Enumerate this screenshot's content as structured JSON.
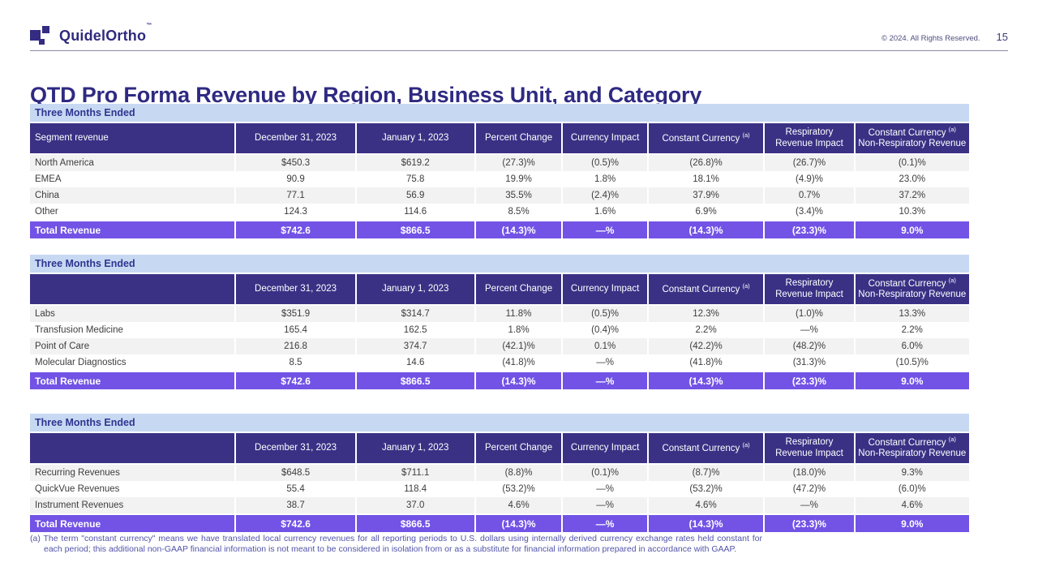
{
  "header": {
    "logo_text": "QuidelOrtho",
    "logo_tm": "™",
    "copyright": "© 2024. All Rights Reserved.",
    "page_number": "15"
  },
  "title": "QTD Pro Forma Revenue by Region, Business Unit, and Category",
  "colors": {
    "indigo": "#3A3185",
    "violet": "#7253E6",
    "lightblue": "#C7D8F2",
    "titleblue": "#2E2A82",
    "captionblue": "#2C3590",
    "bodytext": "#3D3D3D",
    "stripe": "#F2F2F2",
    "footnote": "#5254A9"
  },
  "tables": [
    {
      "caption": "Three Months Ended",
      "first_header": "Segment revenue",
      "columns": [
        {
          "l1": "December 31, 2023"
        },
        {
          "l1": "January 1, 2023"
        },
        {
          "l1": "Percent Change"
        },
        {
          "l1": "Currency Impact"
        },
        {
          "l1": "Constant Currency",
          "sup": "(a)"
        },
        {
          "l1": "Respiratory",
          "l2": "Revenue Impact"
        },
        {
          "l1": "Constant Currency",
          "sup": "(a)",
          "l2": "Non-Respiratory Revenue"
        }
      ],
      "rows": [
        {
          "label": "North America",
          "values": [
            "$450.3",
            "$619.2",
            "(27.3)%",
            "(0.5)%",
            "(26.8)%",
            "(26.7)%",
            "(0.1)%"
          ]
        },
        {
          "label": "EMEA",
          "values": [
            "90.9",
            "75.8",
            "19.9%",
            "1.8%",
            "18.1%",
            "(4.9)%",
            "23.0%"
          ]
        },
        {
          "label": "China",
          "values": [
            "77.1",
            "56.9",
            "35.5%",
            "(2.4)%",
            "37.9%",
            "0.7%",
            "37.2%"
          ]
        },
        {
          "label": "Other",
          "values": [
            "124.3",
            "114.6",
            "8.5%",
            "1.6%",
            "6.9%",
            "(3.4)%",
            "10.3%"
          ]
        }
      ],
      "total": {
        "label": "Total Revenue",
        "values": [
          "$742.6",
          "$866.5",
          "(14.3)%",
          "—%",
          "(14.3)%",
          "(23.3)%",
          "9.0%"
        ]
      }
    },
    {
      "caption": "Three Months Ended",
      "first_header": "",
      "columns": [
        {
          "l1": "December 31, 2023"
        },
        {
          "l1": "January 1, 2023"
        },
        {
          "l1": "Percent Change"
        },
        {
          "l1": "Currency Impact"
        },
        {
          "l1": "Constant Currency",
          "sup": "(a)"
        },
        {
          "l1": "Respiratory",
          "l2": "Revenue Impact"
        },
        {
          "l1": "Constant Currency",
          "sup": "(a)",
          "l2": "Non-Respiratory Revenue"
        }
      ],
      "rows": [
        {
          "label": "Labs",
          "values": [
            "$351.9",
            "$314.7",
            "11.8%",
            "(0.5)%",
            "12.3%",
            "(1.0)%",
            "13.3%"
          ]
        },
        {
          "label": "Transfusion Medicine",
          "values": [
            "165.4",
            "162.5",
            "1.8%",
            "(0.4)%",
            "2.2%",
            "—%",
            "2.2%"
          ]
        },
        {
          "label": "Point of Care",
          "values": [
            "216.8",
            "374.7",
            "(42.1)%",
            "0.1%",
            "(42.2)%",
            "(48.2)%",
            "6.0%"
          ]
        },
        {
          "label": "Molecular Diagnostics",
          "values": [
            "8.5",
            "14.6",
            "(41.8)%",
            "—%",
            "(41.8)%",
            "(31.3)%",
            "(10.5)%"
          ]
        }
      ],
      "total": {
        "label": "Total Revenue",
        "values": [
          "$742.6",
          "$866.5",
          "(14.3)%",
          "—%",
          "(14.3)%",
          "(23.3)%",
          "9.0%"
        ]
      }
    },
    {
      "caption": "Three Months Ended",
      "first_header": "",
      "columns": [
        {
          "l1": "December 31, 2023"
        },
        {
          "l1": "January 1, 2023"
        },
        {
          "l1": "Percent Change"
        },
        {
          "l1": "Currency Impact"
        },
        {
          "l1": "Constant Currency",
          "sup": "(a)"
        },
        {
          "l1": "Respiratory",
          "l2": "Revenue Impact"
        },
        {
          "l1": "Constant Currency",
          "sup": "(a)",
          "l2": "Non-Respiratory Revenue"
        }
      ],
      "rows": [
        {
          "label": "Recurring Revenues",
          "values": [
            "$648.5",
            "$711.1",
            "(8.8)%",
            "(0.1)%",
            "(8.7)%",
            "(18.0)%",
            "9.3%"
          ]
        },
        {
          "label": "QuickVue Revenues",
          "values": [
            "55.4",
            "118.4",
            "(53.2)%",
            "—%",
            "(53.2)%",
            "(47.2)%",
            "(6.0)%"
          ]
        },
        {
          "label": "Instrument Revenues",
          "values": [
            "38.7",
            "37.0",
            "4.6%",
            "—%",
            "4.6%",
            "—%",
            "4.6%"
          ]
        }
      ],
      "total": {
        "label": "Total Revenue",
        "values": [
          "$742.6",
          "$866.5",
          "(14.3)%",
          "—%",
          "(14.3)%",
          "(23.3)%",
          "9.0%"
        ]
      }
    }
  ],
  "footnote": {
    "marker": "(a)",
    "text": "The term \"constant currency\" means we have translated local currency revenues for all reporting periods to U.S. dollars using internally derived currency exchange rates held constant for each period; this additional non-GAAP financial information is not meant to be considered in isolation from or as a substitute for financial information prepared in accordance with GAAP."
  }
}
